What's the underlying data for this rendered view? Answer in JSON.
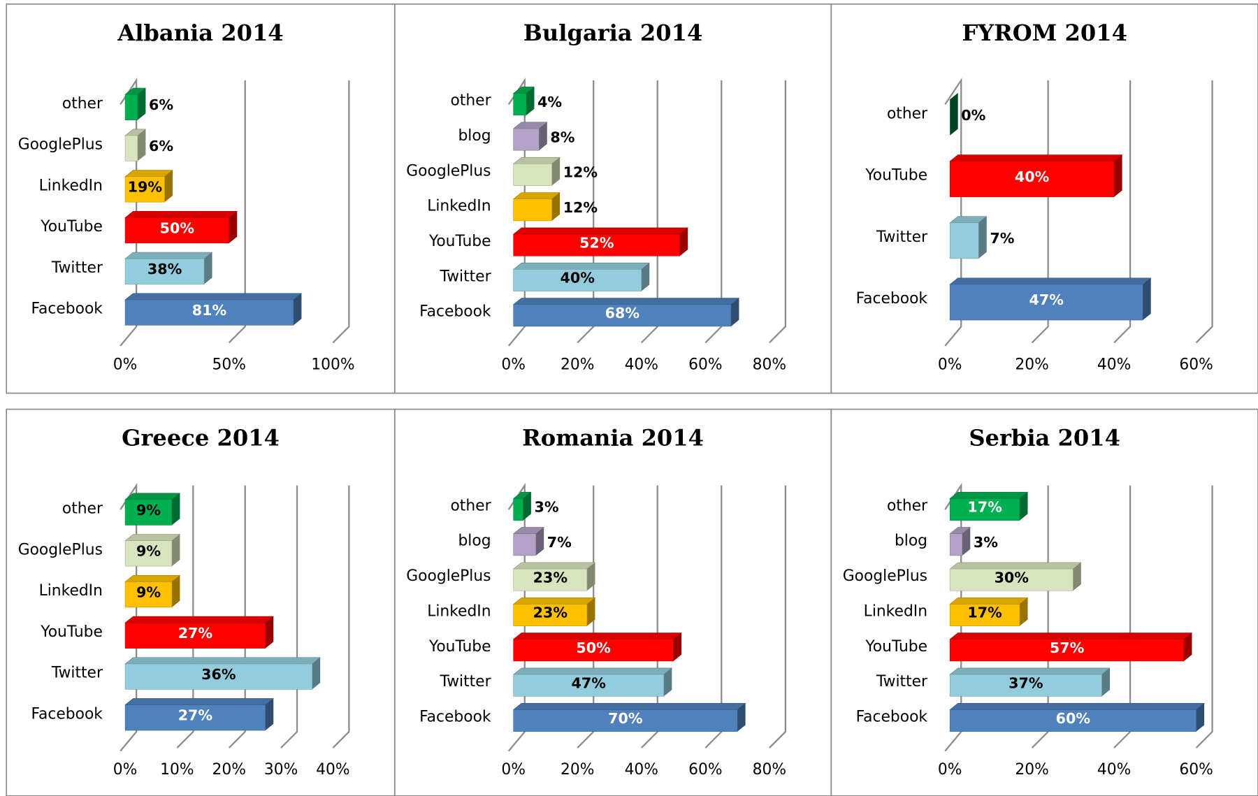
{
  "chart_data": [
    {
      "type": "bar",
      "title": "Albania 2014",
      "categories": [
        "other",
        "GooglePlus",
        "LinkedIn",
        "YouTube",
        "Twitter",
        "Facebook"
      ],
      "values": [
        6,
        6,
        19,
        50,
        38,
        81
      ],
      "value_labels": [
        "6%",
        "6%",
        "19%",
        "50%",
        "38%",
        "81%"
      ],
      "colors": [
        "#00b050",
        "#d7e4bd",
        "#ffc000",
        "#ff0000",
        "#93cddd",
        "#4f81bd"
      ],
      "xlim": [
        0,
        100
      ],
      "xticks": [
        {
          "value": 0,
          "label": "0%"
        },
        {
          "value": 50,
          "label": "50%"
        },
        {
          "value": 100,
          "label": "100%"
        }
      ],
      "grid": true
    },
    {
      "type": "bar",
      "title": "Bulgaria 2014",
      "categories": [
        "other",
        "blog",
        "GooglePlus",
        "LinkedIn",
        "YouTube",
        "Twitter",
        "Facebook"
      ],
      "values": [
        4,
        8,
        12,
        12,
        52,
        40,
        68
      ],
      "value_labels": [
        "4%",
        "8%",
        "12%",
        "12%",
        "52%",
        "40%",
        "68%"
      ],
      "colors": [
        "#00b050",
        "#b3a2c7",
        "#d7e4bd",
        "#ffc000",
        "#ff0000",
        "#93cddd",
        "#4f81bd"
      ],
      "xlim": [
        0,
        80
      ],
      "xticks": [
        {
          "value": 0,
          "label": "0%"
        },
        {
          "value": 20,
          "label": "20%"
        },
        {
          "value": 40,
          "label": "40%"
        },
        {
          "value": 60,
          "label": "60%"
        },
        {
          "value": 80,
          "label": "80%"
        }
      ],
      "grid": true
    },
    {
      "type": "bar",
      "title": "FYROM 2014",
      "categories": [
        "other",
        "YouTube",
        "Twitter",
        "Facebook"
      ],
      "values": [
        0,
        40,
        7,
        47
      ],
      "value_labels": [
        "0%",
        "40%",
        "7%",
        "47%"
      ],
      "colors": [
        "#00703c",
        "#ff0000",
        "#93cddd",
        "#4f81bd"
      ],
      "xlim": [
        0,
        60
      ],
      "xticks": [
        {
          "value": 0,
          "label": "0%"
        },
        {
          "value": 20,
          "label": "20%"
        },
        {
          "value": 40,
          "label": "40%"
        },
        {
          "value": 60,
          "label": "60%"
        }
      ],
      "grid": true
    },
    {
      "type": "bar",
      "title": "Greece 2014",
      "categories": [
        "other",
        "GooglePlus",
        "LinkedIn",
        "YouTube",
        "Twitter",
        "Facebook"
      ],
      "values": [
        9,
        9,
        9,
        27,
        36,
        27
      ],
      "value_labels": [
        "9%",
        "9%",
        "9%",
        "27%",
        "36%",
        "27%"
      ],
      "colors": [
        "#00b050",
        "#d7e4bd",
        "#ffc000",
        "#ff0000",
        "#93cddd",
        "#4f81bd"
      ],
      "xlim": [
        0,
        40
      ],
      "xticks": [
        {
          "value": 0,
          "label": "0%"
        },
        {
          "value": 10,
          "label": "10%"
        },
        {
          "value": 20,
          "label": "20%"
        },
        {
          "value": 30,
          "label": "30%"
        },
        {
          "value": 40,
          "label": "40%"
        }
      ],
      "grid": true
    },
    {
      "type": "bar",
      "title": "Romania 2014",
      "categories": [
        "other",
        "blog",
        "GooglePlus",
        "LinkedIn",
        "YouTube",
        "Twitter",
        "Facebook"
      ],
      "values": [
        3,
        7,
        23,
        23,
        50,
        47,
        70
      ],
      "value_labels": [
        "3%",
        "7%",
        "23%",
        "23%",
        "50%",
        "47%",
        "70%"
      ],
      "colors": [
        "#00b050",
        "#b3a2c7",
        "#d7e4bd",
        "#ffc000",
        "#ff0000",
        "#93cddd",
        "#4f81bd"
      ],
      "xlim": [
        0,
        80
      ],
      "xticks": [
        {
          "value": 0,
          "label": "0%"
        },
        {
          "value": 20,
          "label": "20%"
        },
        {
          "value": 40,
          "label": "40%"
        },
        {
          "value": 60,
          "label": "60%"
        },
        {
          "value": 80,
          "label": "80%"
        }
      ],
      "grid": true
    },
    {
      "type": "bar",
      "title": "Serbia 2014",
      "categories": [
        "other",
        "blog",
        "GooglePlus",
        "LinkedIn",
        "YouTube",
        "Twitter",
        "Facebook"
      ],
      "values": [
        17,
        3,
        30,
        17,
        57,
        37,
        60
      ],
      "value_labels": [
        "17%",
        "3%",
        "30%",
        "17%",
        "57%",
        "37%",
        "60%"
      ],
      "colors": [
        "#00b050",
        "#b3a2c7",
        "#d7e4bd",
        "#ffc000",
        "#ff0000",
        "#93cddd",
        "#4f81bd"
      ],
      "xlim": [
        0,
        60
      ],
      "xticks": [
        {
          "value": 0,
          "label": "0%"
        },
        {
          "value": 20,
          "label": "20%"
        },
        {
          "value": 40,
          "label": "40%"
        },
        {
          "value": 60,
          "label": "60%"
        }
      ],
      "grid": true
    }
  ]
}
